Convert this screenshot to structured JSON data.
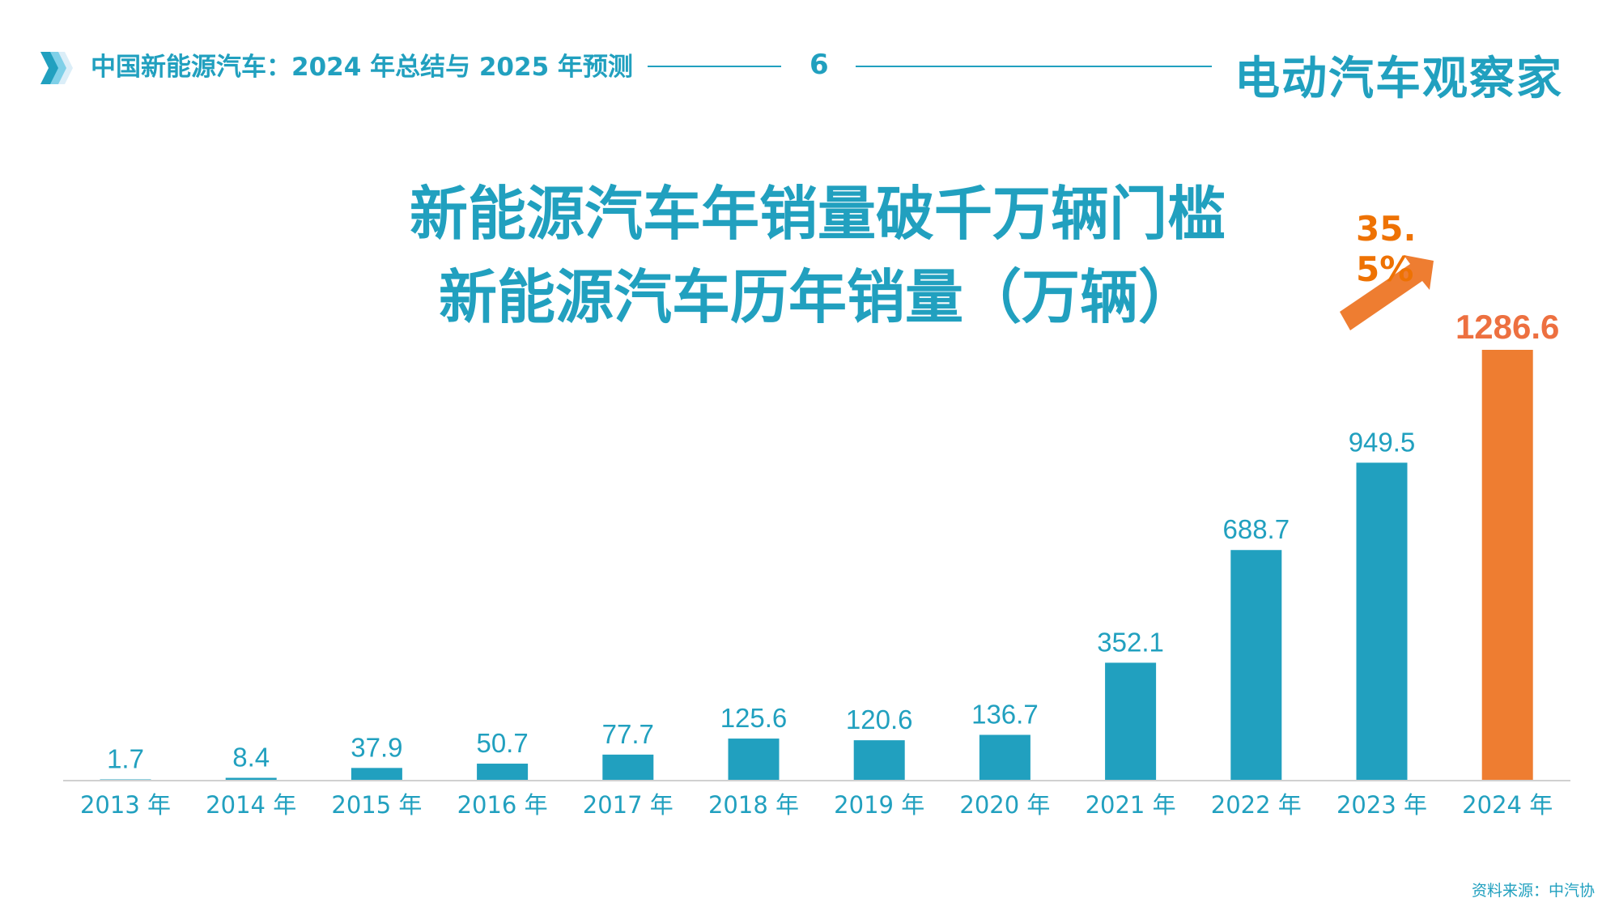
{
  "header": {
    "title": "中国新能源汽车：2024 年总结与 2025 年预测",
    "page_number": "6",
    "logo": "电动汽车观察家"
  },
  "titles": {
    "line1": "新能源汽车年销量破千万辆门槛",
    "line2": "新能源汽车历年销量（万辆）"
  },
  "source": "资料来源：中汽协",
  "colors": {
    "primary": "#21a0bf",
    "highlight": "#ee7d31",
    "growth_text": "#ee7203"
  },
  "chart_data": {
    "type": "bar",
    "title": "新能源汽车历年销量（万辆）",
    "categories": [
      "2013 年",
      "2014 年",
      "2015 年",
      "2016 年",
      "2017 年",
      "2018 年",
      "2019 年",
      "2020 年",
      "2021 年",
      "2022 年",
      "2023 年",
      "2024 年"
    ],
    "values": [
      1.7,
      8.4,
      37.9,
      50.7,
      77.7,
      125.6,
      120.6,
      136.7,
      352.1,
      688.7,
      949.5,
      1286.6
    ],
    "labels": [
      "1.7",
      "8.4",
      "37.9",
      "50.7",
      "77.7",
      "125.6",
      "120.6",
      "136.7",
      "352.1",
      "688.7",
      "949.5",
      "1286.6"
    ],
    "highlight_index": 11,
    "annotation": "35.5%",
    "grid": false,
    "yaxis_visible": false
  }
}
